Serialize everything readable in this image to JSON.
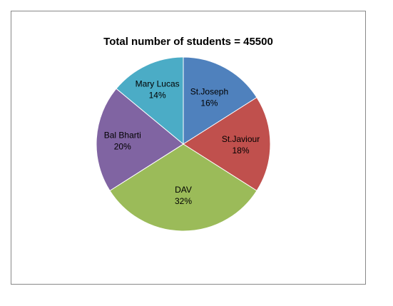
{
  "chart_data": {
    "type": "pie",
    "title": "Total number of students = 45500",
    "slices": [
      {
        "name": "St.Joseph",
        "value": 16,
        "label": "16%",
        "color": "#4F81BD"
      },
      {
        "name": "St.Javiour",
        "value": 18,
        "label": "18%",
        "color": "#C0504D"
      },
      {
        "name": "DAV",
        "value": 32,
        "label": "32%",
        "color": "#9BBB59"
      },
      {
        "name": "Bal Bharti",
        "value": 20,
        "label": "20%",
        "color": "#8064A2"
      },
      {
        "name": "Mary Lucas",
        "value": 14,
        "label": "14%",
        "color": "#4BACC6"
      }
    ],
    "start": "12 o'clock",
    "direction": "clockwise",
    "legend": "none"
  }
}
